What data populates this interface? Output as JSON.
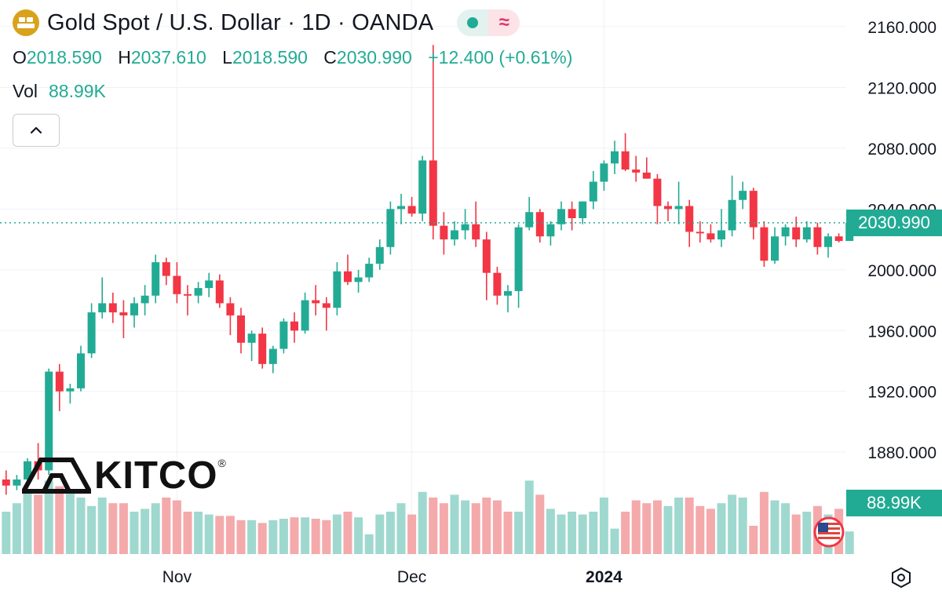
{
  "header": {
    "title": "Gold Spot / U.S. Dollar · 1D · OANDA",
    "ohlc": {
      "o_label": "O",
      "o_value": "2018.590",
      "h_label": "H",
      "h_value": "2037.610",
      "l_label": "L",
      "l_value": "2018.590",
      "c_label": "C",
      "c_value": "2030.990",
      "change": "+12.400 (+0.61%)"
    },
    "volume": {
      "label": "Vol",
      "value": "88.99K"
    }
  },
  "price_box": "2030.990",
  "volume_box": "88.99K",
  "logo_text": "KITCO",
  "logo_mark": "®",
  "icons": {
    "symbol": "gold-bars-icon",
    "status": "market-open-dot-icon",
    "compare": "approx-wave-icon",
    "collapse": "chevron-up-icon",
    "flag": "us-flag-icon",
    "settings": "hexagon-settings-icon"
  },
  "colors": {
    "up": "#22ab94",
    "down": "#f23645",
    "up_volume": "#9fd8cf",
    "down_volume": "#f4a9ab",
    "symbol": "#d9a21b"
  },
  "chart_data": {
    "type": "candlestick",
    "symbol": "Gold Spot / U.S. Dollar",
    "interval": "1D",
    "ylim": [
      1815,
      2175
    ],
    "y_ticks": [
      "1880.000",
      "1920.000",
      "1960.000",
      "2000.000",
      "2040.000",
      "2080.000",
      "2120.000",
      "2160.000"
    ],
    "x_ticks": [
      "Nov",
      "Dec",
      "2024"
    ],
    "x_tick_bars": [
      16,
      38,
      56
    ],
    "last_price": 2030.99,
    "candles": [
      [
        1862,
        1868,
        1852,
        1858
      ],
      [
        1858,
        1865,
        1855,
        1862
      ],
      [
        1862,
        1876,
        1858,
        1874
      ],
      [
        1874,
        1886,
        1862,
        1868
      ],
      [
        1868,
        1935,
        1865,
        1933
      ],
      [
        1933,
        1938,
        1907,
        1920
      ],
      [
        1920,
        1925,
        1912,
        1922
      ],
      [
        1922,
        1950,
        1920,
        1945
      ],
      [
        1945,
        1978,
        1942,
        1972
      ],
      [
        1972,
        1995,
        1968,
        1978
      ],
      [
        1978,
        1985,
        1965,
        1972
      ],
      [
        1972,
        1980,
        1955,
        1970
      ],
      [
        1970,
        1982,
        1962,
        1978
      ],
      [
        1978,
        1990,
        1970,
        1983
      ],
      [
        1983,
        2010,
        1978,
        2005
      ],
      [
        2005,
        2008,
        1990,
        1996
      ],
      [
        1996,
        2005,
        1978,
        1984
      ],
      [
        1984,
        1990,
        1970,
        1983
      ],
      [
        1983,
        1992,
        1978,
        1988
      ],
      [
        1988,
        1998,
        1982,
        1993
      ],
      [
        1993,
        1997,
        1975,
        1978
      ],
      [
        1978,
        1982,
        1957,
        1970
      ],
      [
        1970,
        1975,
        1945,
        1952
      ],
      [
        1952,
        1960,
        1940,
        1958
      ],
      [
        1958,
        1962,
        1935,
        1938
      ],
      [
        1938,
        1950,
        1932,
        1948
      ],
      [
        1948,
        1968,
        1945,
        1966
      ],
      [
        1966,
        1972,
        1952,
        1960
      ],
      [
        1960,
        1985,
        1958,
        1980
      ],
      [
        1980,
        1990,
        1970,
        1978
      ],
      [
        1978,
        1982,
        1960,
        1975
      ],
      [
        1975,
        2005,
        1970,
        1999
      ],
      [
        1999,
        2010,
        1990,
        1992
      ],
      [
        1992,
        2000,
        1985,
        1995
      ],
      [
        1995,
        2008,
        1992,
        2004
      ],
      [
        2004,
        2020,
        2000,
        2015
      ],
      [
        2015,
        2045,
        2010,
        2040
      ],
      [
        2040,
        2050,
        2030,
        2042
      ],
      [
        2042,
        2048,
        2035,
        2037
      ],
      [
        2037,
        2075,
        2032,
        2072
      ],
      [
        2072,
        2148,
        2020,
        2029
      ],
      [
        2029,
        2038,
        2010,
        2020
      ],
      [
        2020,
        2032,
        2016,
        2026
      ],
      [
        2026,
        2040,
        2020,
        2030
      ],
      [
        2030,
        2045,
        2015,
        2020
      ],
      [
        2020,
        2025,
        1980,
        1998
      ],
      [
        1998,
        2002,
        1977,
        1983
      ],
      [
        1983,
        1990,
        1972,
        1986
      ],
      [
        1986,
        2030,
        1975,
        2028
      ],
      [
        2028,
        2048,
        2026,
        2038
      ],
      [
        2038,
        2040,
        2018,
        2022
      ],
      [
        2022,
        2032,
        2016,
        2030
      ],
      [
        2030,
        2045,
        2026,
        2040
      ],
      [
        2040,
        2045,
        2026,
        2034
      ],
      [
        2034,
        2045,
        2030,
        2045
      ],
      [
        2045,
        2065,
        2040,
        2058
      ],
      [
        2058,
        2072,
        2052,
        2070
      ],
      [
        2070,
        2085,
        2063,
        2078
      ],
      [
        2078,
        2090,
        2065,
        2066
      ],
      [
        2066,
        2075,
        2058,
        2064
      ],
      [
        2064,
        2074,
        2060,
        2060
      ],
      [
        2060,
        2063,
        2030,
        2042
      ],
      [
        2042,
        2045,
        2032,
        2040
      ],
      [
        2040,
        2058,
        2030,
        2042
      ],
      [
        2042,
        2046,
        2015,
        2025
      ],
      [
        2025,
        2032,
        2018,
        2024
      ],
      [
        2024,
        2030,
        2018,
        2020
      ],
      [
        2020,
        2040,
        2015,
        2026
      ],
      [
        2026,
        2062,
        2022,
        2046
      ],
      [
        2046,
        2058,
        2040,
        2052
      ],
      [
        2052,
        2054,
        2020,
        2028
      ],
      [
        2028,
        2032,
        2002,
        2006
      ],
      [
        2006,
        2028,
        2004,
        2022
      ],
      [
        2022,
        2030,
        2016,
        2028
      ],
      [
        2028,
        2035,
        2015,
        2020
      ],
      [
        2020,
        2032,
        2018,
        2028
      ],
      [
        2028,
        2031,
        2010,
        2015
      ],
      [
        2015,
        2024,
        2008,
        2022
      ],
      [
        2022,
        2024,
        2018,
        2019
      ],
      [
        2019,
        2038,
        2019,
        2031
      ]
    ],
    "volume_up": [
      true,
      true,
      true,
      false,
      true,
      false,
      true,
      true,
      true,
      true,
      false,
      false,
      true,
      true,
      true,
      false,
      false,
      false,
      true,
      true,
      false,
      false,
      false,
      true,
      false,
      true,
      true,
      false,
      true,
      false,
      false,
      true,
      false,
      true,
      true,
      true,
      true,
      true,
      false,
      true,
      false,
      false,
      true,
      true,
      false,
      false,
      false,
      false,
      true,
      true,
      false,
      true,
      true,
      true,
      true,
      true,
      true,
      true,
      false,
      false,
      false,
      false,
      true,
      true,
      false,
      false,
      false,
      true,
      true,
      true,
      false,
      false,
      true,
      true,
      false,
      true,
      false,
      true,
      false,
      true
    ],
    "volume_units": [
      "relative",
      0,
      100
    ],
    "volume": [
      30,
      36,
      44,
      42,
      52,
      48,
      44,
      40,
      34,
      40,
      36,
      36,
      30,
      32,
      36,
      40,
      38,
      30,
      30,
      28,
      27,
      27,
      24,
      24,
      22,
      24,
      25,
      26,
      26,
      25,
      24,
      28,
      30,
      26,
      14,
      28,
      30,
      36,
      28,
      44,
      40,
      36,
      42,
      38,
      36,
      40,
      38,
      30,
      30,
      52,
      42,
      32,
      28,
      30,
      28,
      30,
      40,
      18,
      30,
      38,
      36,
      38,
      34,
      40,
      40,
      34,
      32,
      36,
      42,
      40,
      20,
      44,
      38,
      36,
      28,
      30,
      34,
      28,
      32,
      16
    ]
  }
}
